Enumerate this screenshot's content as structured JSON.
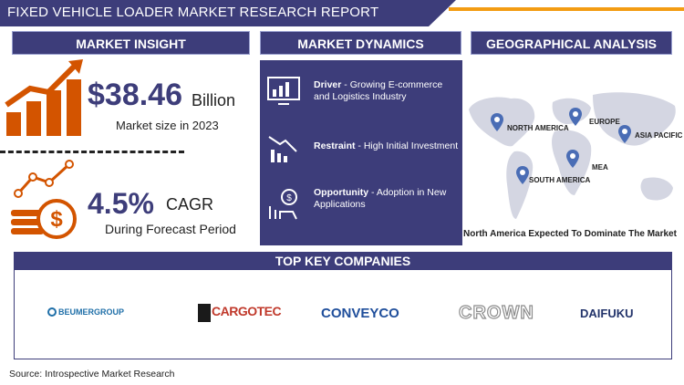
{
  "title": "FIXED VEHICLE LOADER MARKET RESEARCH REPORT",
  "sections": {
    "insight": "MARKET INSIGHT",
    "dynamics": "MARKET DYNAMICS",
    "geo": "GEOGRAPHICAL ANALYSIS",
    "companies": "TOP KEY COMPANIES"
  },
  "insight": {
    "size_value": "$38.46",
    "size_unit": "Billion",
    "size_caption": "Market size in 2023",
    "cagr_value": "4.5%",
    "cagr_unit": "CAGR",
    "cagr_caption": "During Forecast Period"
  },
  "dynamics": [
    {
      "label": "Driver",
      "text": " - Growing E-commerce and Logistics Industry",
      "icon": "monitor-chart-icon"
    },
    {
      "label": "Restraint",
      "text": " - High Initial Investment",
      "icon": "decline-chart-icon"
    },
    {
      "label": "Opportunity",
      "text": " - Adoption in New Applications",
      "icon": "growth-hand-icon"
    }
  ],
  "geo": {
    "regions": [
      "NORTH AMERICA",
      "EUROPE",
      "ASIA PACIFIC",
      "MEA",
      "SOUTH AMERICA"
    ],
    "caption": "North America Expected To Dominate The Market"
  },
  "companies": [
    "BEUMERGROUP",
    "CARGOTEC",
    "CONVEYCO",
    "CROWN",
    "DAIFUKU"
  ],
  "source": "Source: Introspective Market Research",
  "colors": {
    "navy": "#3d3d7a",
    "orange": "#d35400",
    "accent": "#f39c12"
  }
}
